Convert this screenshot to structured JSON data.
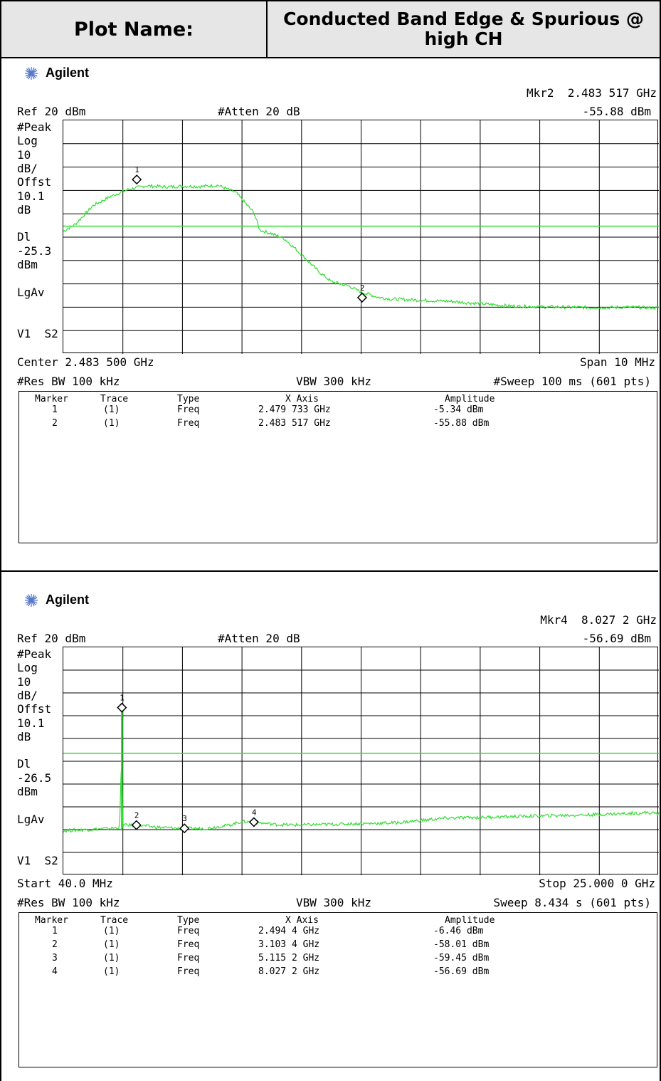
{
  "header": {
    "label": "Plot Name:",
    "value": "Conducted Band Edge & Spurious @ high CH"
  },
  "colors": {
    "trace": "#33dd33",
    "display_line": "#33dd33",
    "header_bg": "#e6e6e6"
  },
  "plots": [
    {
      "brand": "Agilent",
      "marker_readout": "Mkr2  2.483 517 GHz",
      "marker_amp": "-55.88 dBm",
      "ref": "Ref 20 dBm",
      "atten": "#Atten 20 dB",
      "side": [
        "#Peak",
        "Log",
        "10",
        "dB/",
        "Offst",
        "10.1",
        "dB",
        "",
        "Dl",
        "-25.3",
        "dBm",
        "",
        "LgAv",
        "",
        "",
        "V1  S2"
      ],
      "x_left": "Center 2.483 500 GHz",
      "x_right": "Span 10 MHz",
      "rbw": "#Res BW 100 kHz",
      "vbw": "VBW 300 kHz",
      "sweep": "#Sweep 100 ms (601 pts)",
      "table_head": [
        "Marker",
        "Trace",
        "Type",
        "X Axis",
        "Amplitude"
      ],
      "rows": [
        [
          "1",
          "(1)",
          "Freq",
          "2.479 733 GHz",
          "-5.34 dBm"
        ],
        [
          "2",
          "(1)",
          "Freq",
          "2.483 517 GHz",
          "-55.88 dBm"
        ]
      ]
    },
    {
      "brand": "Agilent",
      "marker_readout": "Mkr4  8.027 2 GHz",
      "marker_amp": "-56.69 dBm",
      "ref": "Ref 20 dBm",
      "atten": "#Atten 20 dB",
      "side": [
        "#Peak",
        "Log",
        "10",
        "dB/",
        "Offst",
        "10.1",
        "dB",
        "",
        "Dl",
        "-26.5",
        "dBm",
        "",
        "LgAv",
        "",
        "",
        "V1  S2"
      ],
      "x_left": "Start 40.0 MHz",
      "x_right": "Stop 25.000 0 GHz",
      "rbw": "#Res BW 100 kHz",
      "vbw": "VBW 300 kHz",
      "sweep": "Sweep 8.434 s (601 pts)",
      "table_head": [
        "Marker",
        "Trace",
        "Type",
        "X Axis",
        "Amplitude"
      ],
      "rows": [
        [
          "1",
          "(1)",
          "Freq",
          "2.494 4 GHz",
          "-6.46 dBm"
        ],
        [
          "2",
          "(1)",
          "Freq",
          "3.103 4 GHz",
          "-58.01 dBm"
        ],
        [
          "3",
          "(1)",
          "Freq",
          "5.115 2 GHz",
          "-59.45 dBm"
        ],
        [
          "4",
          "(1)",
          "Freq",
          "8.027 2 GHz",
          "-56.69 dBm"
        ]
      ]
    }
  ],
  "chart_data": [
    {
      "type": "line",
      "ref_level_dbm": 20,
      "db_per_div": 10,
      "divisions": 10,
      "ylim": [
        -80,
        20
      ],
      "xlim": [
        2478.5,
        2488.5
      ],
      "x_unit": "MHz",
      "display_line_dbm": -25.3,
      "x": [
        2478.5,
        2478.7,
        2479.0,
        2479.3,
        2479.6,
        2479.9,
        2480.2,
        2480.5,
        2480.8,
        2481.1,
        2481.4,
        2481.7,
        2481.8,
        2482.0,
        2482.2,
        2482.4,
        2482.6,
        2482.8,
        2483.0,
        2483.3,
        2483.5,
        2483.8,
        2484.0,
        2484.5,
        2485.0,
        2485.5,
        2486.0,
        2486.5,
        2487.0,
        2487.5,
        2488.0,
        2488.5
      ],
      "y": [
        -27.5,
        -24.5,
        -16.5,
        -12.5,
        -9.5,
        -8.0,
        -8.5,
        -8.2,
        -8.3,
        -7.8,
        -11.0,
        -19.5,
        -27.0,
        -28.5,
        -30.5,
        -35.0,
        -40.0,
        -45.0,
        -49.0,
        -51.0,
        -53.5,
        -55.8,
        -56.5,
        -57.0,
        -57.5,
        -58.5,
        -59.5,
        -59.8,
        -60.0,
        -60.2,
        -60.0,
        -60.3
      ],
      "markers": [
        {
          "label": "1",
          "x": 2479.733,
          "y": -5.34
        },
        {
          "label": "2",
          "x": 2483.517,
          "y": -55.88
        }
      ]
    },
    {
      "type": "line",
      "ref_level_dbm": 20,
      "db_per_div": 10,
      "divisions": 10,
      "ylim": [
        -80,
        20
      ],
      "xlim": [
        0.04,
        25.0
      ],
      "x_unit": "GHz",
      "display_line_dbm": -26.5,
      "x": [
        0.04,
        1.0,
        2.0,
        2.4,
        2.45,
        2.49,
        2.5,
        2.56,
        3.1,
        4.0,
        5.0,
        6.0,
        7.0,
        7.5,
        8.0,
        9.0,
        10.0,
        12.0,
        14.0,
        16.0,
        18.0,
        20.0,
        22.0,
        23.5,
        24.5,
        25.0
      ],
      "y": [
        -60.5,
        -60.0,
        -59.5,
        -59.0,
        -40.0,
        -6.0,
        -59.0,
        -58.0,
        -58.0,
        -59.0,
        -59.5,
        -59.5,
        -58.0,
        -56.5,
        -56.7,
        -57.8,
        -58.0,
        -57.5,
        -57.0,
        -55.0,
        -54.5,
        -54.0,
        -53.5,
        -53.0,
        -52.5,
        -53.0
      ],
      "markers": [
        {
          "label": "1",
          "x": 2.4944,
          "y": -6.46
        },
        {
          "label": "2",
          "x": 3.1034,
          "y": -58.01
        },
        {
          "label": "3",
          "x": 5.1152,
          "y": -59.45
        },
        {
          "label": "4",
          "x": 8.0272,
          "y": -56.69
        }
      ]
    }
  ]
}
